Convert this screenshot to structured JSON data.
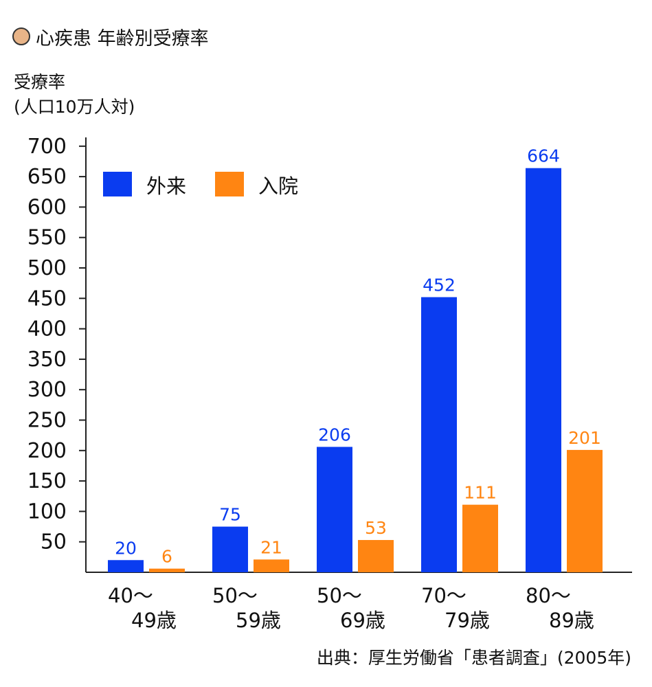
{
  "title": "心疾患 年齢別受療率",
  "ylabel_line1": "受療率",
  "ylabel_line2": "(人口10万人対)",
  "source": "出典：厚生労働省「患者調査」(2005年)",
  "colors": {
    "title_dot": "#e8b488",
    "outpatient": "#0a3cf0",
    "inpatient": "#ff8512",
    "axis": "#222222"
  },
  "chart_data": {
    "type": "bar",
    "categories": [
      [
        "40～",
        "49歳"
      ],
      [
        "50～",
        "59歳"
      ],
      [
        "50～",
        "69歳"
      ],
      [
        "70～",
        "79歳"
      ],
      [
        "80～",
        "89歳"
      ]
    ],
    "series": [
      {
        "name": "外来",
        "values": [
          20,
          75,
          206,
          452,
          664
        ],
        "labels": [
          "20",
          "75",
          "206",
          "452",
          "664"
        ]
      },
      {
        "name": "入院",
        "values": [
          6,
          21,
          53,
          111,
          201
        ],
        "labels": [
          "6",
          "21",
          "53",
          "111",
          "201"
        ]
      }
    ],
    "ylim": [
      0,
      700
    ],
    "yticks": [
      50,
      100,
      150,
      200,
      250,
      300,
      350,
      400,
      450,
      500,
      550,
      600,
      650,
      700
    ],
    "legend_position": "top-left",
    "grid": false
  }
}
